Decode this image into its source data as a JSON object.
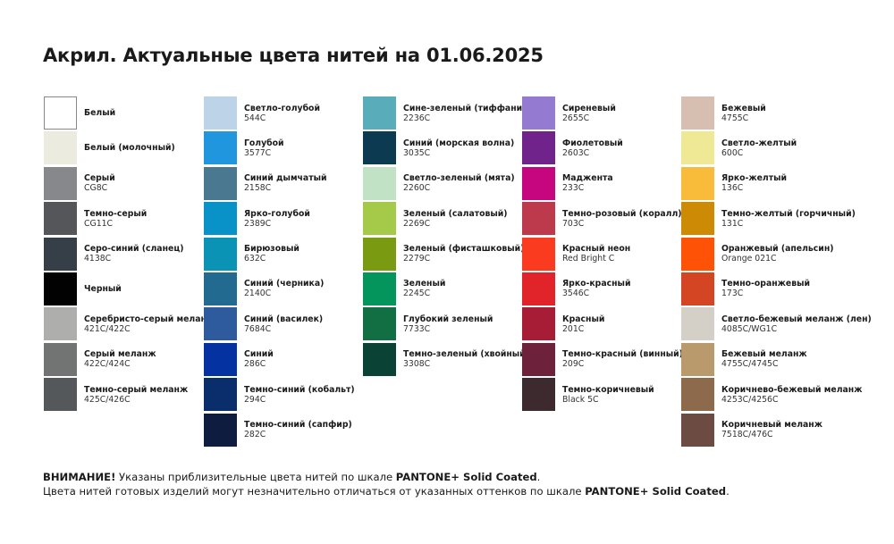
{
  "title": "Акрил. Актуальные цвета нитей на 01.06.2025",
  "columns": [
    [
      {
        "name": "Белый",
        "code": "",
        "color": "#ffffff"
      },
      {
        "name": "Белый (молочный)",
        "code": "",
        "color": "#ebebe0"
      },
      {
        "name": "Серый",
        "code": "CG8C",
        "color": "#87888b"
      },
      {
        "name": "Темно-серый",
        "code": "CG11C",
        "color": "#555659"
      },
      {
        "name": "Серо-синий (сланец)",
        "code": "4138C",
        "color": "#363f48"
      },
      {
        "name": "Черный",
        "code": "",
        "color": "#020202"
      },
      {
        "name": "Серебристо-серый меланж",
        "code": "421C/422C",
        "color": "#aeafad"
      },
      {
        "name": "Серый меланж",
        "code": "422C/424C",
        "color": "#727373"
      },
      {
        "name": "Темно-серый меланж",
        "code": "425C/426C",
        "color": "#55585a"
      }
    ],
    [
      {
        "name": "Светло-голубой",
        "code": "544C",
        "color": "#bdd3e7"
      },
      {
        "name": "Голубой",
        "code": "3577C",
        "color": "#1f96dd"
      },
      {
        "name": "Синий дымчатый",
        "code": "2158C",
        "color": "#4b7891"
      },
      {
        "name": "Ярко-голубой",
        "code": "2389C",
        "color": "#0992c7"
      },
      {
        "name": "Бирюзовый",
        "code": "632C",
        "color": "#0b93b5"
      },
      {
        "name": "Синий (черника)",
        "code": "2140C",
        "color": "#226a8f"
      },
      {
        "name": "Синий (василек)",
        "code": "7684C",
        "color": "#2e5a9e"
      },
      {
        "name": "Синий",
        "code": "286C",
        "color": "#0433a1"
      },
      {
        "name": "Темно-синий (кобальт)",
        "code": "294C",
        "color": "#0a2e6b"
      },
      {
        "name": "Темно-синий (сапфир)",
        "code": "282C",
        "color": "#0e1c40"
      }
    ],
    [
      {
        "name": "Сине-зеленый (тиффани)",
        "code": "2236C",
        "color": "#59adbb"
      },
      {
        "name": "Синий (морская волна)",
        "code": "3035C",
        "color": "#0c3a50"
      },
      {
        "name": "Светло-зеленый (мята)",
        "code": "2260C",
        "color": "#c2e2c6"
      },
      {
        "name": "Зеленый (салатовый)",
        "code": "2269C",
        "color": "#a5ca49"
      },
      {
        "name": "Зеленый (фисташковый)",
        "code": "2279C",
        "color": "#7a9a12"
      },
      {
        "name": "Зеленый",
        "code": "2245C",
        "color": "#03955c"
      },
      {
        "name": "Глубокий зеленый",
        "code": "7733C",
        "color": "#126f44"
      },
      {
        "name": "Темно-зеленый (хвойный)",
        "code": "3308C",
        "color": "#0a4335"
      }
    ],
    [
      {
        "name": "Сиреневый",
        "code": "2655C",
        "color": "#957ad1"
      },
      {
        "name": "Фиолетовый",
        "code": "2603C",
        "color": "#70238a"
      },
      {
        "name": "Маджента",
        "code": "233C",
        "color": "#c5067f"
      },
      {
        "name": "Темно-розовый (коралл)",
        "code": "703C",
        "color": "#bc3a4c"
      },
      {
        "name": "Красный неон",
        "code": "Red Bright C",
        "color": "#fb3b1f"
      },
      {
        "name": "Ярко-красный",
        "code": "3546C",
        "color": "#e0242a"
      },
      {
        "name": "Красный",
        "code": "201C",
        "color": "#a61d35"
      },
      {
        "name": "Темно-красный (винный)",
        "code": "209C",
        "color": "#6e213a"
      },
      {
        "name": "Темно-коричневый",
        "code": "Black 5C",
        "color": "#3d2a2e"
      }
    ],
    [
      {
        "name": "Бежевый",
        "code": "4755C",
        "color": "#d6bfb0"
      },
      {
        "name": "Светло-желтый",
        "code": "600C",
        "color": "#efe894"
      },
      {
        "name": "Ярко-желтый",
        "code": "136C",
        "color": "#f8bb3a"
      },
      {
        "name": "Темно-желтый (горчичный)",
        "code": "131C",
        "color": "#cd8b05"
      },
      {
        "name": "Оранжевый (апельсин)",
        "code": "Orange 021C",
        "color": "#fe5207"
      },
      {
        "name": "Темно-оранжевый",
        "code": "173C",
        "color": "#d44623"
      },
      {
        "name": "Светло-бежевый меланж (лен)",
        "code": "4085C/WG1C",
        "color": "#d4d0c8"
      },
      {
        "name": "Бежевый меланж",
        "code": "4755C/4745C",
        "color": "#b89a6c"
      },
      {
        "name": "Коричнево-бежевый меланж",
        "code": "4253C/4256C",
        "color": "#8c6a4b"
      },
      {
        "name": "Коричневый меланж",
        "code": "7518C/476C",
        "color": "#6b4b42"
      }
    ]
  ],
  "footer": {
    "line1_bold": "ВНИМАНИЕ!",
    "line1_text": " Указаны приблизительные цвета нитей по шкале ",
    "line1_brand": "PANTONE+ Solid Coated",
    "line1_end": ".",
    "line2_text": "Цвета нитей готовых изделий могут незначительно отличаться от указанных оттенков по шкале ",
    "line2_brand": "PANTONE+ Solid Coated",
    "line2_end": "."
  }
}
